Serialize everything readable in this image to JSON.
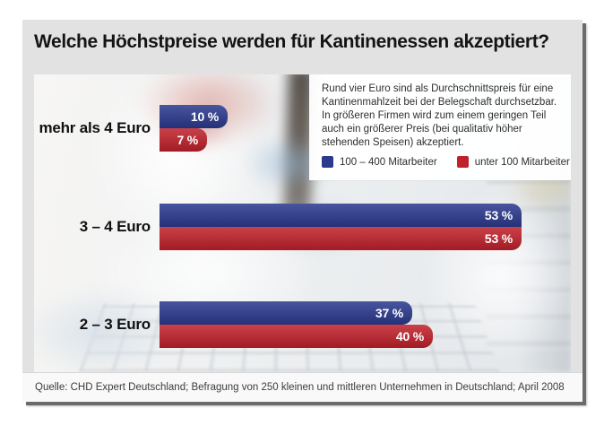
{
  "title": "Welche Höchstpreise werden für Kantinenessen akzeptiert?",
  "info_box": {
    "text": "Rund vier Euro sind als Durchschnittspreis für eine Kantinenmahlzeit bei der Belegschaft durchsetzbar. In größeren Firmen wird zum einem geringen Teil auch ein größerer Preis (bei qualitativ höher stehenden Speisen) akzeptiert."
  },
  "legend": [
    {
      "label": "100 – 400 Mitarbeiter",
      "color": "#2b3a8f"
    },
    {
      "label": "unter 100 Mitarbeiter",
      "color": "#c1212b"
    }
  ],
  "source": "Quelle: CHD Expert Deutschland; Befragung von 250 kleinen und mittleren Unternehmen in Deutschland; April 2008",
  "chart_data": {
    "type": "bar",
    "orientation": "horizontal",
    "title": "Welche Höchstpreise werden für Kantinenessen akzeptiert?",
    "categories": [
      "mehr als 4 Euro",
      "3 – 4 Euro",
      "2 – 3 Euro"
    ],
    "series": [
      {
        "name": "100 – 400 Mitarbeiter",
        "color": "#2b3a8f",
        "values": [
          10,
          53,
          37
        ],
        "value_labels": [
          "10 %",
          "53 %",
          "37 %"
        ]
      },
      {
        "name": "unter 100 Mitarbeiter",
        "color": "#c1212b",
        "values": [
          7,
          53,
          40
        ],
        "value_labels": [
          "7 %",
          "53 %",
          "40 %"
        ]
      }
    ],
    "unit": "%",
    "xlim": [
      0,
      60
    ],
    "grid": false,
    "legend_position": "top-right",
    "value_labels_inside": true
  }
}
